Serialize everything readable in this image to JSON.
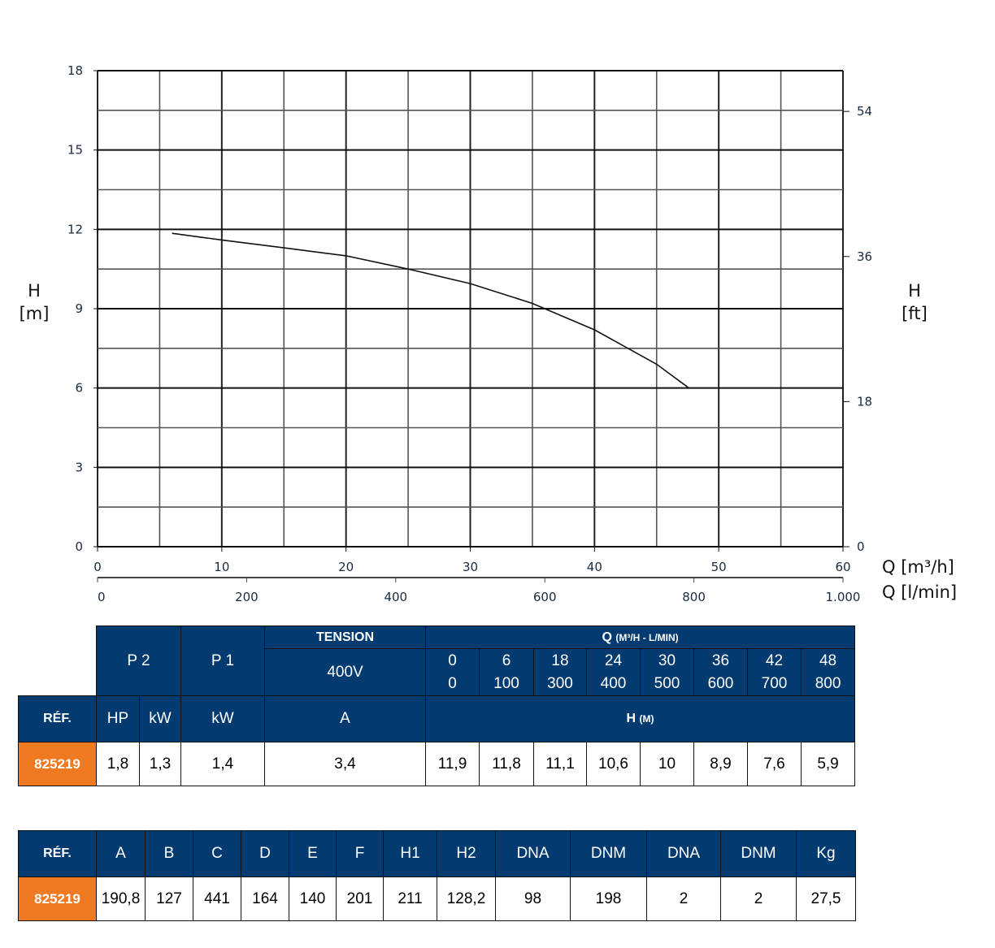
{
  "chart_data": {
    "type": "line",
    "ylabel_left": [
      "H",
      "[m]"
    ],
    "ylabel_right": [
      "H",
      "[ft]"
    ],
    "xlabel_primary": "Q [m³/h]",
    "xlabel_secondary": "Q [l/min]",
    "xlim": [
      0,
      60
    ],
    "ylim": [
      0,
      18
    ],
    "x_ticks": [
      0,
      10,
      20,
      30,
      40,
      50,
      60
    ],
    "y_ticks": [
      0,
      3,
      6,
      9,
      12,
      15,
      18
    ],
    "y_ft_ticks": [
      0,
      18,
      36,
      54
    ],
    "x_lmin_ticks": [
      0,
      200,
      400,
      600,
      800,
      1000
    ],
    "x_lmin_tick_labels": [
      "0",
      "200",
      "400",
      "600",
      "800",
      "1.000"
    ],
    "x_lmin_max": 1000,
    "grid": true,
    "grid_x_step": 5,
    "grid_y_step": 1.5,
    "line_color": "#111111",
    "series": [
      {
        "x": [
          6,
          10,
          15,
          20,
          25,
          30,
          35,
          40,
          45,
          47.6
        ],
        "y": [
          11.85,
          11.6,
          11.3,
          11.0,
          10.5,
          9.95,
          9.2,
          8.2,
          6.9,
          6.0
        ]
      }
    ]
  },
  "table1": {
    "p2": "P 2",
    "p1": "P 1",
    "tension": "TENSION",
    "voltage": "400V",
    "q_title": "Q",
    "q_unit": "(M³/H - L/MIN)",
    "q_m3h": [
      "0",
      "6",
      "18",
      "24",
      "30",
      "36",
      "42",
      "48"
    ],
    "q_lmin": [
      "0",
      "100",
      "300",
      "400",
      "500",
      "600",
      "700",
      "800"
    ],
    "ref_label": "RÉF.",
    "hp": "HP",
    "kw": "kW",
    "p1_kw": "kW",
    "amp": "A",
    "h_title": "H",
    "h_unit": "(M)",
    "row": {
      "ref": "825219",
      "hp": "1,8",
      "kw": "1,3",
      "p1": "1,4",
      "a": "3,4",
      "h": [
        "11,9",
        "11,8",
        "11,1",
        "10,6",
        "10",
        "8,9",
        "7,6",
        "5,9"
      ]
    }
  },
  "table2": {
    "headers": [
      "RÉF.",
      "A",
      "B",
      "C",
      "D",
      "E",
      "F",
      "H1",
      "H2",
      "DNA",
      "DNM",
      "DNA",
      "DNM",
      "Kg"
    ],
    "row": [
      "825219",
      "190,8",
      "127",
      "441",
      "164",
      "140",
      "201",
      "211",
      "128,2",
      "98",
      "198",
      "2",
      "2",
      "27,5"
    ]
  },
  "colors": {
    "header_blue": "#033a6f",
    "ref_orange": "#f07a22"
  }
}
